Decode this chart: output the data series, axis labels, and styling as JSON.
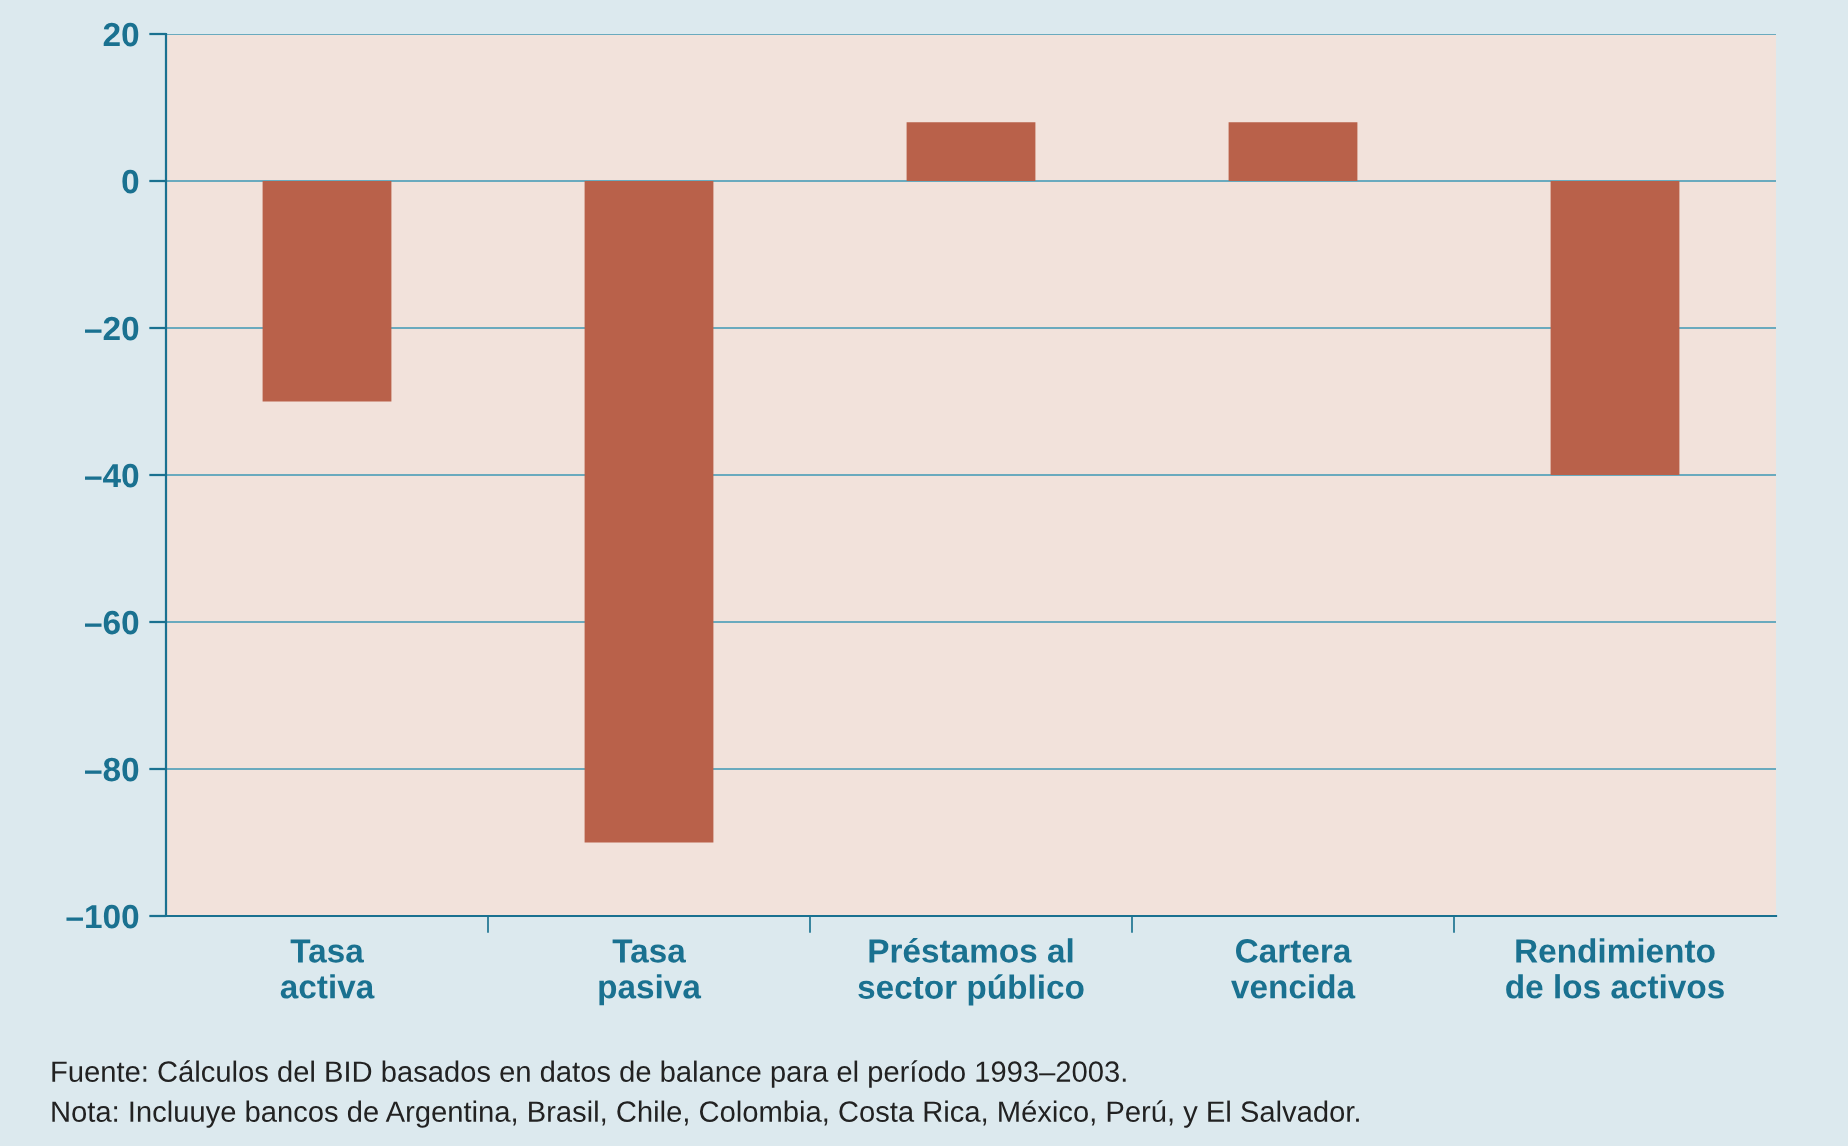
{
  "chart_data": {
    "type": "bar",
    "categories": [
      "Tasa\nactiva",
      "Tasa\npasiva",
      "Préstamos al\nsector público",
      "Cartera\nvencida",
      "Rendimiento\nde los activos"
    ],
    "values": [
      -30,
      -90,
      8,
      8,
      -40
    ],
    "color": "#b9614a",
    "ylim": [
      -100,
      20
    ],
    "yticks": [
      20,
      0,
      {
        "value": -20,
        "label": "–20"
      },
      {
        "value": -40,
        "label": "–40"
      },
      {
        "value": -60,
        "label": "–60"
      },
      {
        "value": -80,
        "label": "–80"
      },
      {
        "value": -100,
        "label": "–100"
      }
    ],
    "grid": "y",
    "legend": false,
    "annotations": [
      "Fuente: Cálculos del BID basados en datos de balance para el período 1993–2003.",
      "Nota: Incluuye bancos de Argentina, Brasil, Chile, Colombia, Costa Rica, México, Perú, y El Salvador."
    ]
  }
}
